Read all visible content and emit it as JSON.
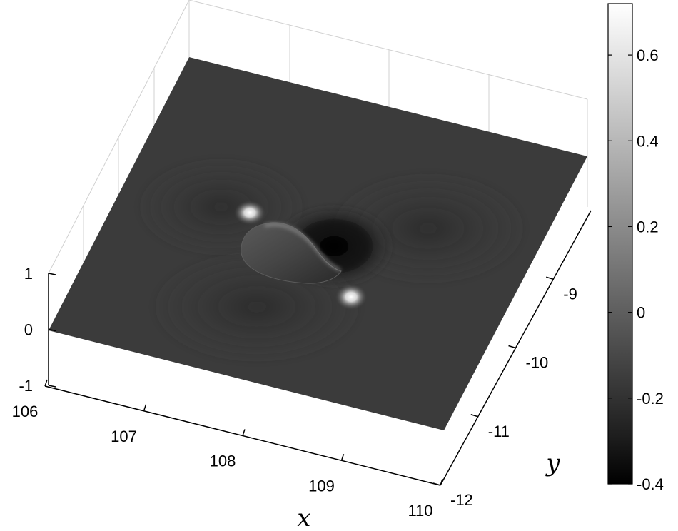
{
  "chart_data": {
    "type": "surface",
    "x_axis": {
      "label": "x",
      "range": [
        106,
        110
      ],
      "ticks": [
        106,
        107,
        108,
        109,
        110
      ],
      "tick_labels": [
        "106",
        "107",
        "108",
        "109",
        "110"
      ]
    },
    "y_axis": {
      "label": "y",
      "range": [
        -12,
        -8
      ],
      "ticks": [
        -9,
        -10,
        -11,
        -12
      ],
      "tick_labels": [
        "-9",
        "-10",
        "-11",
        "-12"
      ]
    },
    "z_axis": {
      "label": "",
      "range": [
        -1,
        1
      ],
      "ticks": [
        1,
        0,
        -1
      ],
      "tick_labels": [
        "1",
        "0",
        "-1"
      ]
    },
    "colorbar": {
      "range": [
        -0.4,
        0.72
      ],
      "colormap": "gray",
      "ticks": [
        0.6,
        0.4,
        0.2,
        0,
        -0.2,
        -0.4
      ],
      "tick_labels": [
        "0.6",
        "0.4",
        "0.2",
        "0",
        "-0.2",
        "-0.4"
      ]
    },
    "grid": true,
    "features": [
      {
        "kind": "peak",
        "x": 107.8,
        "y": -8.6,
        "value": 0.7
      },
      {
        "kind": "peak",
        "x": 108.6,
        "y": -9.6,
        "value": 0.7
      },
      {
        "kind": "ridge",
        "x": 108.0,
        "y": -9.1,
        "value": 0.3
      },
      {
        "kind": "trough",
        "x": 108.4,
        "y": -8.9,
        "value": -0.4
      }
    ]
  }
}
